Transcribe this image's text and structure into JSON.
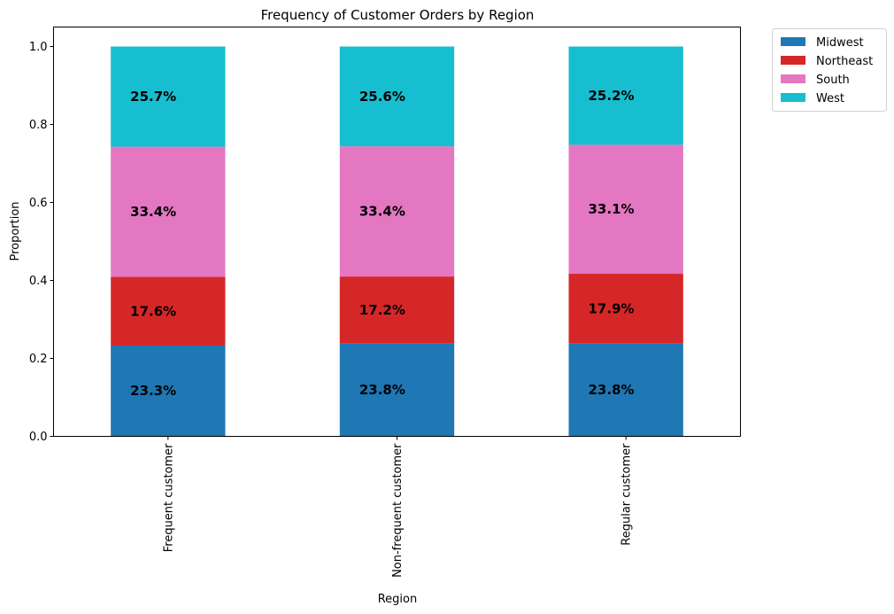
{
  "chart_data": {
    "type": "bar",
    "stacked": true,
    "title": "Frequency of Customer Orders by Region",
    "xlabel": "Region",
    "ylabel": "Proportion",
    "ylim": [
      0,
      1.05
    ],
    "yticks": [
      0.0,
      0.2,
      0.4,
      0.6,
      0.8,
      1.0
    ],
    "ytick_labels": [
      "0.0",
      "0.2",
      "0.4",
      "0.6",
      "0.8",
      "1.0"
    ],
    "categories": [
      "Frequent customer",
      "Non-frequent customer",
      "Regular customer"
    ],
    "grid": false,
    "legend_position": "outside-top-right",
    "series": [
      {
        "name": "Midwest",
        "color": "#1f77b4",
        "values": [
          0.233,
          0.238,
          0.238
        ],
        "labels": [
          "23.3%",
          "23.8%",
          "23.8%"
        ]
      },
      {
        "name": "Northeast",
        "color": "#d62728",
        "values": [
          0.176,
          0.172,
          0.179
        ],
        "labels": [
          "17.6%",
          "17.2%",
          "17.9%"
        ]
      },
      {
        "name": "South",
        "color": "#e377c2",
        "values": [
          0.334,
          0.334,
          0.331
        ],
        "labels": [
          "33.4%",
          "33.4%",
          "33.1%"
        ]
      },
      {
        "name": "West",
        "color": "#17becf",
        "values": [
          0.257,
          0.256,
          0.252
        ],
        "labels": [
          "25.7%",
          "25.6%",
          "25.2%"
        ]
      }
    ]
  }
}
